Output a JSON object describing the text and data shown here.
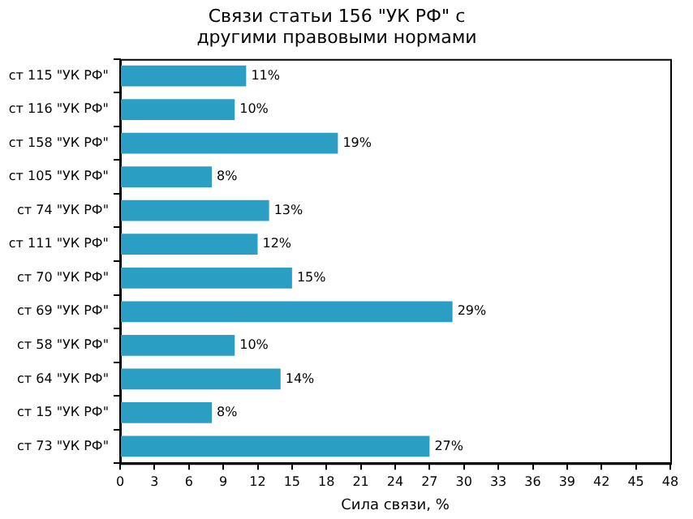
{
  "chart_data": {
    "type": "bar",
    "orientation": "horizontal",
    "title": "Связи статьи 156 \"УК РФ\" с\nдругими правовыми нормами",
    "xlabel": "Сила связи, %",
    "categories": [
      "ст 115 \"УК РФ\"",
      "ст 116 \"УК РФ\"",
      "ст 158 \"УК РФ\"",
      "ст 105 \"УК РФ\"",
      "ст 74 \"УК РФ\"",
      "ст 111 \"УК РФ\"",
      "ст 70 \"УК РФ\"",
      "ст 69 \"УК РФ\"",
      "ст 58 \"УК РФ\"",
      "ст 64 \"УК РФ\"",
      "ст 15 \"УК РФ\"",
      "ст 73 \"УК РФ\""
    ],
    "values": [
      11,
      10,
      19,
      8,
      13,
      12,
      15,
      29,
      10,
      14,
      8,
      27
    ],
    "value_labels": [
      "11%",
      "10%",
      "19%",
      "8%",
      "13%",
      "12%",
      "15%",
      "29%",
      "10%",
      "14%",
      "8%",
      "27%"
    ],
    "color": "#2b9fc3",
    "xlim": [
      0,
      48
    ],
    "xticks": [
      0,
      3,
      6,
      9,
      12,
      15,
      18,
      21,
      24,
      27,
      30,
      33,
      36,
      39,
      42,
      45,
      48
    ],
    "grid": false,
    "legend": false
  }
}
